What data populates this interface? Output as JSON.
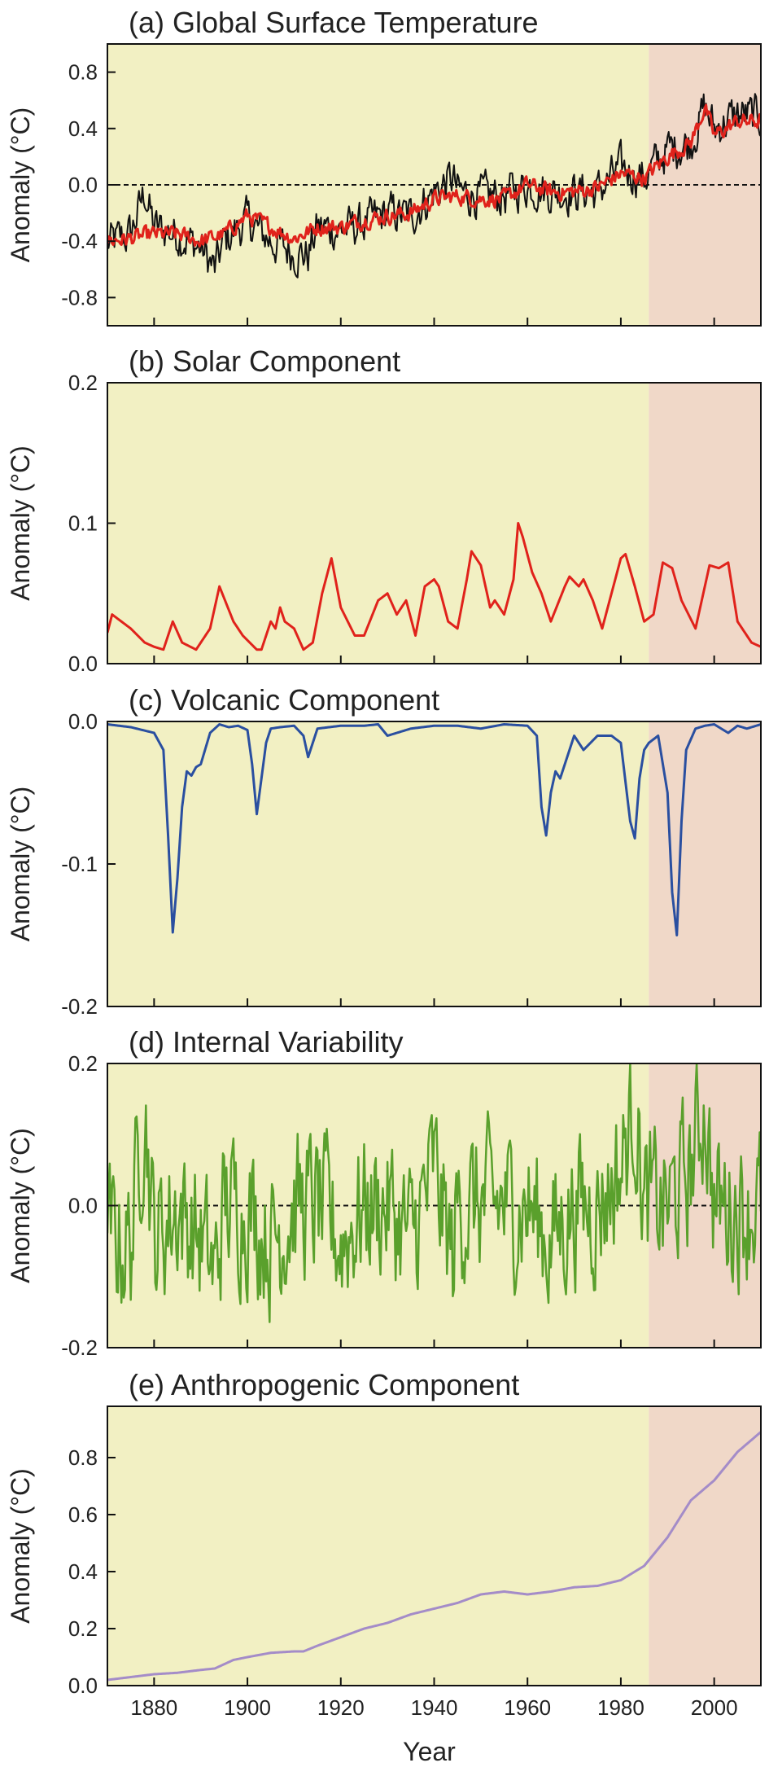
{
  "chart_data": [
    {
      "type": "line",
      "title": "(a)  Global Surface Temperature",
      "ylabel": "Anomaly (°C)",
      "xlim": [
        1870,
        2010
      ],
      "ylim": [
        -1.0,
        1.0
      ],
      "yticks": [
        0.8,
        0.4,
        0.0,
        -0.4,
        -0.8
      ],
      "yticklabels": [
        "0.8",
        "0.4",
        "0.0",
        "-0.4",
        "-0.8"
      ],
      "zero_line": true,
      "shaded_periods": [
        {
          "start": 1870,
          "end": 1986,
          "color": "#f2f0c3"
        },
        {
          "start": 1986,
          "end": 2010,
          "color": "#f0d8c8"
        }
      ],
      "series": [
        {
          "color": "#111111",
          "width": 2,
          "noise_amp": 0.13,
          "x": [
            1870,
            1875,
            1878,
            1880,
            1885,
            1890,
            1893,
            1895,
            1900,
            1905,
            1910,
            1913,
            1915,
            1920,
            1925,
            1930,
            1935,
            1940,
            1944,
            1945,
            1950,
            1955,
            1960,
            1965,
            1970,
            1975,
            1980,
            1985,
            1990,
            1995,
            1998,
            2000,
            2005,
            2010
          ],
          "y": [
            -0.42,
            -0.35,
            -0.05,
            -0.3,
            -0.35,
            -0.45,
            -0.6,
            -0.4,
            -0.25,
            -0.4,
            -0.48,
            -0.5,
            -0.3,
            -0.32,
            -0.28,
            -0.2,
            -0.22,
            -0.05,
            0.05,
            -0.05,
            -0.08,
            -0.08,
            0.0,
            -0.05,
            -0.05,
            -0.05,
            0.12,
            0.05,
            0.25,
            0.3,
            0.55,
            0.4,
            0.5,
            0.48
          ]
        },
        {
          "color": "#e0221b",
          "width": 3,
          "noise_amp": 0.05,
          "x": [
            1870,
            1875,
            1880,
            1885,
            1890,
            1895,
            1900,
            1905,
            1910,
            1915,
            1920,
            1925,
            1930,
            1935,
            1940,
            1945,
            1950,
            1955,
            1960,
            1965,
            1970,
            1975,
            1980,
            1985,
            1990,
            1995,
            1998,
            2000,
            2005,
            2010
          ],
          "y": [
            -0.4,
            -0.38,
            -0.35,
            -0.35,
            -0.4,
            -0.35,
            -0.22,
            -0.3,
            -0.38,
            -0.3,
            -0.3,
            -0.25,
            -0.22,
            -0.2,
            -0.1,
            -0.08,
            -0.1,
            -0.1,
            0.0,
            -0.05,
            -0.05,
            -0.02,
            0.08,
            0.05,
            0.2,
            0.3,
            0.55,
            0.35,
            0.45,
            0.45
          ]
        }
      ]
    },
    {
      "type": "line",
      "title": "(b)  Solar Component",
      "ylabel": "Anomaly (°C)",
      "xlim": [
        1870,
        2010
      ],
      "ylim": [
        0.0,
        0.2
      ],
      "yticks": [
        0.2,
        0.1,
        0.0
      ],
      "yticklabels": [
        "0.2",
        "0.1",
        "0.0"
      ],
      "zero_line": false,
      "shaded_periods": [
        {
          "start": 1870,
          "end": 1986,
          "color": "#f2f0c3"
        },
        {
          "start": 1986,
          "end": 2010,
          "color": "#f0d8c8"
        }
      ],
      "series": [
        {
          "color": "#e0221b",
          "width": 3,
          "noise_amp": 0,
          "x": [
            1870,
            1871,
            1873,
            1875,
            1878,
            1880,
            1882,
            1884,
            1886,
            1889,
            1892,
            1894,
            1897,
            1899,
            1902,
            1903,
            1905,
            1906,
            1907,
            1908,
            1910,
            1912,
            1914,
            1916,
            1918,
            1920,
            1923,
            1925,
            1928,
            1930,
            1932,
            1934,
            1936,
            1938,
            1940,
            1941,
            1943,
            1945,
            1947,
            1948,
            1950,
            1952,
            1953,
            1955,
            1957,
            1958,
            1959,
            1961,
            1963,
            1965,
            1968,
            1969,
            1971,
            1972,
            1974,
            1976,
            1978,
            1980,
            1981,
            1983,
            1985,
            1987,
            1989,
            1991,
            1993,
            1996,
            1998,
            1999,
            2001,
            2003,
            2005,
            2008,
            2010
          ],
          "y": [
            0.022,
            0.035,
            0.03,
            0.025,
            0.015,
            0.012,
            0.01,
            0.03,
            0.015,
            0.01,
            0.025,
            0.055,
            0.03,
            0.02,
            0.01,
            0.01,
            0.03,
            0.025,
            0.04,
            0.03,
            0.025,
            0.01,
            0.015,
            0.05,
            0.075,
            0.04,
            0.02,
            0.02,
            0.045,
            0.05,
            0.035,
            0.045,
            0.02,
            0.055,
            0.06,
            0.055,
            0.03,
            0.025,
            0.06,
            0.08,
            0.07,
            0.04,
            0.045,
            0.035,
            0.06,
            0.1,
            0.09,
            0.065,
            0.05,
            0.03,
            0.055,
            0.062,
            0.055,
            0.06,
            0.045,
            0.025,
            0.05,
            0.075,
            0.078,
            0.055,
            0.03,
            0.035,
            0.072,
            0.068,
            0.045,
            0.025,
            0.055,
            0.07,
            0.068,
            0.072,
            0.03,
            0.015,
            0.012
          ]
        }
      ]
    },
    {
      "type": "line",
      "title": "(c)  Volcanic Component",
      "ylabel": "Anomaly (°C)",
      "xlim": [
        1870,
        2010
      ],
      "ylim": [
        -0.2,
        0.0
      ],
      "yticks": [
        0.0,
        -0.1,
        -0.2
      ],
      "yticklabels": [
        "0.0",
        "-0.1",
        "-0.2"
      ],
      "zero_line": false,
      "shaded_periods": [
        {
          "start": 1870,
          "end": 1986,
          "color": "#f2f0c3"
        },
        {
          "start": 1986,
          "end": 2010,
          "color": "#f0d8c8"
        }
      ],
      "series": [
        {
          "color": "#2a4fa0",
          "width": 3,
          "noise_amp": 0,
          "x": [
            1870,
            1875,
            1880,
            1882,
            1883,
            1884,
            1885,
            1886,
            1887,
            1888,
            1889,
            1890,
            1892,
            1894,
            1896,
            1898,
            1900,
            1901,
            1902,
            1903,
            1904,
            1905,
            1907,
            1910,
            1912,
            1913,
            1915,
            1920,
            1925,
            1928,
            1930,
            1935,
            1940,
            1945,
            1950,
            1955,
            1960,
            1962,
            1963,
            1964,
            1965,
            1966,
            1967,
            1968,
            1970,
            1972,
            1975,
            1978,
            1980,
            1982,
            1983,
            1984,
            1985,
            1986,
            1988,
            1990,
            1991,
            1992,
            1993,
            1994,
            1996,
            1998,
            2000,
            2003,
            2005,
            2007,
            2010
          ],
          "y": [
            -0.002,
            -0.004,
            -0.008,
            -0.02,
            -0.08,
            -0.148,
            -0.11,
            -0.06,
            -0.035,
            -0.038,
            -0.032,
            -0.03,
            -0.008,
            -0.002,
            -0.004,
            -0.003,
            -0.006,
            -0.03,
            -0.065,
            -0.04,
            -0.015,
            -0.005,
            -0.004,
            -0.003,
            -0.01,
            -0.025,
            -0.005,
            -0.003,
            -0.003,
            -0.002,
            -0.01,
            -0.005,
            -0.003,
            -0.003,
            -0.005,
            -0.002,
            -0.003,
            -0.01,
            -0.06,
            -0.08,
            -0.05,
            -0.035,
            -0.04,
            -0.03,
            -0.01,
            -0.02,
            -0.01,
            -0.01,
            -0.015,
            -0.07,
            -0.082,
            -0.04,
            -0.02,
            -0.015,
            -0.01,
            -0.05,
            -0.12,
            -0.15,
            -0.07,
            -0.02,
            -0.005,
            -0.003,
            -0.002,
            -0.008,
            -0.003,
            -0.005,
            -0.002
          ]
        }
      ]
    },
    {
      "type": "line",
      "title": "(d)  Internal Variability",
      "ylabel": "Anomaly (°C)",
      "xlim": [
        1870,
        2010
      ],
      "ylim": [
        -0.2,
        0.2
      ],
      "yticks": [
        0.2,
        0.0,
        -0.2
      ],
      "yticklabels": [
        "0.2",
        "0.0",
        "-0.2"
      ],
      "zero_line": true,
      "shaded_periods": [
        {
          "start": 1870,
          "end": 1986,
          "color": "#f2f0c3"
        },
        {
          "start": 1986,
          "end": 2010,
          "color": "#f0d8c8"
        }
      ],
      "series": [
        {
          "color": "#5aa02c",
          "width": 2.5,
          "noise_amp": 0.09,
          "x": [
            1870,
            1875,
            1878,
            1880,
            1885,
            1890,
            1893,
            1895,
            1900,
            1905,
            1910,
            1915,
            1920,
            1925,
            1930,
            1935,
            1940,
            1944,
            1945,
            1950,
            1955,
            1960,
            1965,
            1970,
            1975,
            1980,
            1983,
            1985,
            1990,
            1995,
            1998,
            2000,
            2005,
            2010
          ],
          "y": [
            -0.05,
            -0.05,
            0.15,
            -0.05,
            0.0,
            -0.05,
            -0.1,
            0.0,
            0.0,
            -0.05,
            0.0,
            0.0,
            -0.05,
            0.0,
            0.0,
            -0.05,
            0.05,
            -0.08,
            0.0,
            0.0,
            0.0,
            0.0,
            -0.05,
            0.0,
            0.0,
            0.05,
            0.15,
            0.0,
            0.0,
            0.05,
            0.15,
            0.0,
            0.0,
            0.0
          ]
        }
      ]
    },
    {
      "type": "line",
      "title": "(e)  Anthropogenic Component",
      "ylabel": "Anomaly (°C)",
      "xlabel": "Year",
      "xticks": [
        1880,
        1900,
        1920,
        1940,
        1960,
        1980,
        2000
      ],
      "xticklabels": [
        "1880",
        "1900",
        "1920",
        "1940",
        "1960",
        "1980",
        "2000"
      ],
      "xlim": [
        1870,
        2010
      ],
      "ylim": [
        0.0,
        0.98
      ],
      "yticks": [
        0.8,
        0.6,
        0.4,
        0.2,
        0.0
      ],
      "yticklabels": [
        "0.8",
        "0.6",
        "0.4",
        "0.2",
        "0.0"
      ],
      "zero_line": false,
      "shaded_periods": [
        {
          "start": 1870,
          "end": 1986,
          "color": "#f2f0c3"
        },
        {
          "start": 1986,
          "end": 2010,
          "color": "#f0d8c8"
        }
      ],
      "series": [
        {
          "color": "#a48cc8",
          "width": 3,
          "noise_amp": 0,
          "x": [
            1870,
            1875,
            1880,
            1885,
            1890,
            1893,
            1897,
            1900,
            1905,
            1910,
            1912,
            1915,
            1920,
            1925,
            1930,
            1935,
            1940,
            1945,
            1950,
            1955,
            1960,
            1965,
            1970,
            1975,
            1980,
            1985,
            1990,
            1995,
            2000,
            2005,
            2010
          ],
          "y": [
            0.02,
            0.03,
            0.04,
            0.045,
            0.055,
            0.06,
            0.09,
            0.1,
            0.115,
            0.12,
            0.12,
            0.14,
            0.17,
            0.2,
            0.22,
            0.25,
            0.27,
            0.29,
            0.32,
            0.33,
            0.32,
            0.33,
            0.345,
            0.35,
            0.37,
            0.42,
            0.52,
            0.65,
            0.72,
            0.82,
            0.89
          ]
        }
      ]
    }
  ]
}
